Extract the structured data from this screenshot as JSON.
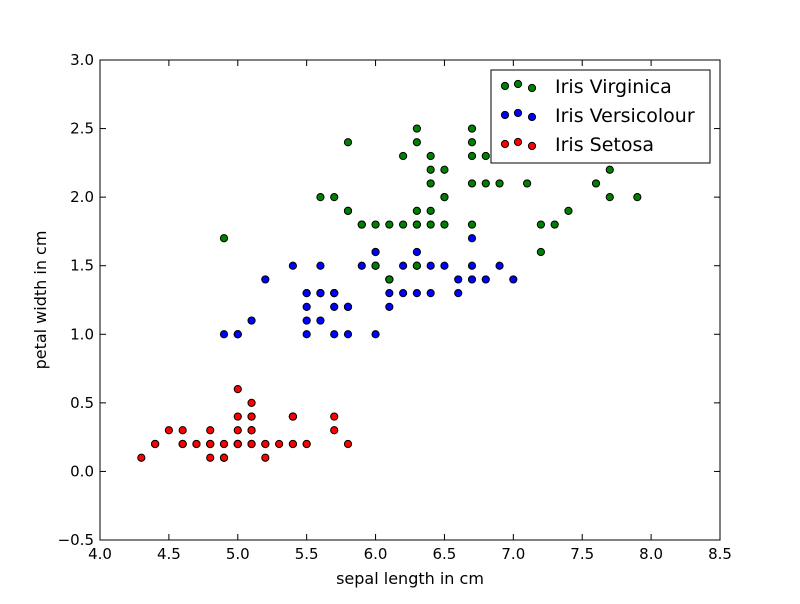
{
  "chart_data": {
    "type": "scatter",
    "title": "",
    "xlabel": "sepal length in cm",
    "ylabel": "petal width in cm",
    "xlim": [
      4.0,
      8.5
    ],
    "ylim": [
      -0.5,
      3.0
    ],
    "xticks": [
      "4.0",
      "4.5",
      "5.0",
      "5.5",
      "6.0",
      "6.5",
      "7.0",
      "7.5",
      "8.0",
      "8.5"
    ],
    "yticks": [
      "−0.5",
      "0.0",
      "0.5",
      "1.0",
      "1.5",
      "2.0",
      "2.5",
      "3.0"
    ],
    "grid": false,
    "legend_position": "top-right",
    "series": [
      {
        "name": "Iris Virginica",
        "color": "#008000",
        "points": [
          [
            6.3,
            2.5
          ],
          [
            5.8,
            1.9
          ],
          [
            7.1,
            2.1
          ],
          [
            6.3,
            1.8
          ],
          [
            6.5,
            2.2
          ],
          [
            7.6,
            2.1
          ],
          [
            4.9,
            1.7
          ],
          [
            7.3,
            1.8
          ],
          [
            6.7,
            1.8
          ],
          [
            7.2,
            2.5
          ],
          [
            6.5,
            2.0
          ],
          [
            6.4,
            1.9
          ],
          [
            6.8,
            2.1
          ],
          [
            5.7,
            2.0
          ],
          [
            5.8,
            2.4
          ],
          [
            6.4,
            2.3
          ],
          [
            6.5,
            1.8
          ],
          [
            7.7,
            2.2
          ],
          [
            7.7,
            2.3
          ],
          [
            6.0,
            1.5
          ],
          [
            6.9,
            2.3
          ],
          [
            5.6,
            2.0
          ],
          [
            7.7,
            2.0
          ],
          [
            6.3,
            1.8
          ],
          [
            6.7,
            2.1
          ],
          [
            7.2,
            1.8
          ],
          [
            6.2,
            1.8
          ],
          [
            6.1,
            1.8
          ],
          [
            6.4,
            2.1
          ],
          [
            7.2,
            1.6
          ],
          [
            7.4,
            1.9
          ],
          [
            7.9,
            2.0
          ],
          [
            6.4,
            2.2
          ],
          [
            6.3,
            1.5
          ],
          [
            6.1,
            1.4
          ],
          [
            7.7,
            2.3
          ],
          [
            6.3,
            2.4
          ],
          [
            6.4,
            1.8
          ],
          [
            6.0,
            1.8
          ],
          [
            6.9,
            2.1
          ],
          [
            6.7,
            2.4
          ],
          [
            6.9,
            2.3
          ],
          [
            5.8,
            1.9
          ],
          [
            6.8,
            2.3
          ],
          [
            6.7,
            2.5
          ],
          [
            6.7,
            2.3
          ],
          [
            6.3,
            1.9
          ],
          [
            6.5,
            2.0
          ],
          [
            6.2,
            2.3
          ],
          [
            5.9,
            1.8
          ]
        ]
      },
      {
        "name": "Iris Versicolour",
        "color": "#0000ff",
        "points": [
          [
            7.0,
            1.4
          ],
          [
            6.4,
            1.5
          ],
          [
            6.9,
            1.5
          ],
          [
            5.5,
            1.3
          ],
          [
            6.5,
            1.5
          ],
          [
            5.7,
            1.3
          ],
          [
            6.3,
            1.6
          ],
          [
            4.9,
            1.0
          ],
          [
            6.6,
            1.3
          ],
          [
            5.2,
            1.4
          ],
          [
            5.0,
            1.0
          ],
          [
            5.9,
            1.5
          ],
          [
            6.0,
            1.0
          ],
          [
            6.1,
            1.4
          ],
          [
            5.6,
            1.3
          ],
          [
            6.7,
            1.4
          ],
          [
            5.6,
            1.5
          ],
          [
            5.8,
            1.0
          ],
          [
            6.2,
            1.5
          ],
          [
            5.6,
            1.1
          ],
          [
            5.9,
            1.8
          ],
          [
            6.1,
            1.3
          ],
          [
            6.3,
            1.5
          ],
          [
            6.1,
            1.2
          ],
          [
            6.4,
            1.3
          ],
          [
            6.6,
            1.4
          ],
          [
            6.8,
            1.4
          ],
          [
            6.7,
            1.7
          ],
          [
            6.0,
            1.5
          ],
          [
            5.7,
            1.0
          ],
          [
            5.5,
            1.1
          ],
          [
            5.5,
            1.0
          ],
          [
            5.8,
            1.2
          ],
          [
            6.0,
            1.6
          ],
          [
            5.4,
            1.5
          ],
          [
            6.0,
            1.6
          ],
          [
            6.7,
            1.5
          ],
          [
            6.3,
            1.3
          ],
          [
            5.6,
            1.3
          ],
          [
            5.5,
            1.3
          ],
          [
            5.5,
            1.2
          ],
          [
            6.1,
            1.4
          ],
          [
            5.8,
            1.2
          ],
          [
            5.0,
            1.0
          ],
          [
            5.6,
            1.3
          ],
          [
            5.7,
            1.2
          ],
          [
            5.7,
            1.3
          ],
          [
            6.2,
            1.3
          ],
          [
            5.1,
            1.1
          ],
          [
            5.7,
            1.3
          ]
        ]
      },
      {
        "name": "Iris Setosa",
        "color": "#ff0000",
        "points": [
          [
            5.1,
            0.2
          ],
          [
            4.9,
            0.2
          ],
          [
            4.7,
            0.2
          ],
          [
            4.6,
            0.2
          ],
          [
            5.0,
            0.2
          ],
          [
            5.4,
            0.4
          ],
          [
            4.6,
            0.3
          ],
          [
            5.0,
            0.2
          ],
          [
            4.4,
            0.2
          ],
          [
            4.9,
            0.1
          ],
          [
            5.4,
            0.2
          ],
          [
            4.8,
            0.2
          ],
          [
            4.8,
            0.1
          ],
          [
            4.3,
            0.1
          ],
          [
            5.8,
            0.2
          ],
          [
            5.7,
            0.4
          ],
          [
            5.4,
            0.4
          ],
          [
            5.1,
            0.3
          ],
          [
            5.7,
            0.3
          ],
          [
            5.1,
            0.3
          ],
          [
            5.4,
            0.2
          ],
          [
            5.1,
            0.4
          ],
          [
            4.6,
            0.2
          ],
          [
            5.1,
            0.5
          ],
          [
            4.8,
            0.2
          ],
          [
            5.0,
            0.2
          ],
          [
            5.0,
            0.4
          ],
          [
            5.2,
            0.2
          ],
          [
            5.2,
            0.2
          ],
          [
            4.7,
            0.2
          ],
          [
            4.8,
            0.2
          ],
          [
            5.4,
            0.4
          ],
          [
            5.2,
            0.1
          ],
          [
            5.5,
            0.2
          ],
          [
            4.9,
            0.2
          ],
          [
            5.0,
            0.2
          ],
          [
            5.5,
            0.2
          ],
          [
            4.9,
            0.1
          ],
          [
            4.4,
            0.2
          ],
          [
            5.1,
            0.2
          ],
          [
            5.0,
            0.3
          ],
          [
            4.5,
            0.3
          ],
          [
            4.4,
            0.2
          ],
          [
            5.0,
            0.6
          ],
          [
            5.1,
            0.4
          ],
          [
            4.8,
            0.3
          ],
          [
            5.1,
            0.2
          ],
          [
            4.6,
            0.2
          ],
          [
            5.3,
            0.2
          ],
          [
            5.0,
            0.2
          ]
        ]
      }
    ]
  }
}
